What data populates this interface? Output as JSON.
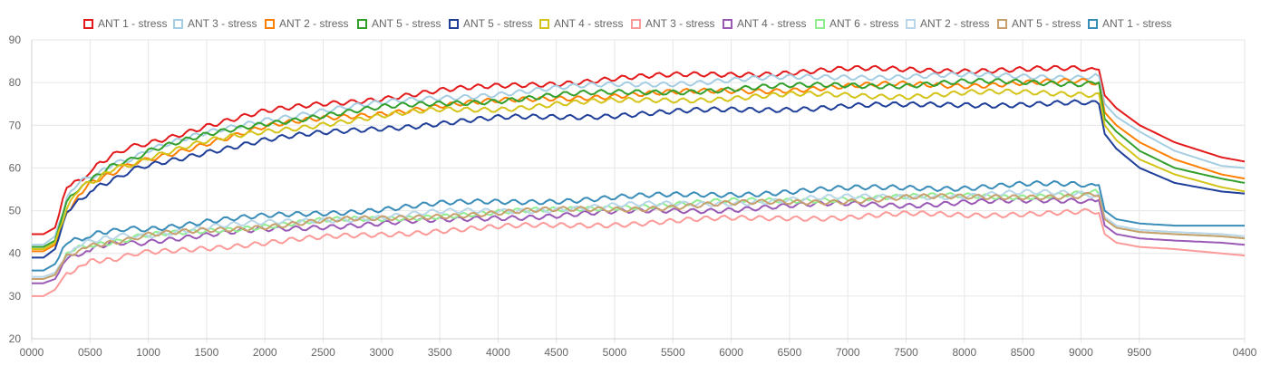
{
  "chart_data": {
    "type": "line",
    "title": "",
    "xlabel": "",
    "ylabel": "",
    "ylim": [
      20,
      90
    ],
    "y_ticks": [
      20,
      30,
      40,
      50,
      60,
      70,
      80,
      90
    ],
    "x_tick_labels": [
      "0000",
      "0500",
      "1000",
      "1500",
      "2000",
      "2500",
      "3000",
      "3500",
      "4000",
      "4500",
      "5000",
      "5500",
      "6000",
      "6500",
      "7000",
      "7500",
      "8000",
      "8500",
      "9000",
      "9500",
      "0400"
    ],
    "grid": true,
    "legend_position": "top",
    "x": [
      0,
      100,
      200,
      300,
      400,
      500,
      700,
      1000,
      1500,
      2000,
      2500,
      3000,
      3500,
      4000,
      4500,
      5000,
      5500,
      6000,
      6500,
      7000,
      7500,
      8000,
      8500,
      9000,
      9150,
      9200,
      9300,
      9500,
      9800,
      10200,
      10400
    ],
    "series": [
      {
        "name": "ANT 1 - stress",
        "color": "#e31a1c",
        "values": [
          44.5,
          44.5,
          46,
          55,
          57,
          59,
          63,
          66,
          70,
          73,
          75,
          76.5,
          78,
          79,
          80,
          81,
          81.5,
          82,
          82.5,
          83,
          83,
          83,
          83,
          83,
          83,
          77,
          74,
          70,
          66,
          62.5,
          61.5
        ]
      },
      {
        "name": "ANT 3 - stress",
        "color": "#a6cee3",
        "values": [
          42,
          42,
          44,
          53,
          56,
          58,
          61,
          64,
          68,
          71.5,
          73.5,
          75,
          76.5,
          77.5,
          78.5,
          79.5,
          80,
          80.5,
          81,
          81.5,
          81.5,
          81.5,
          81.5,
          81.5,
          81.5,
          75,
          72,
          68.5,
          64,
          60.5,
          60
        ]
      },
      {
        "name": "ANT 2 - stress",
        "color": "#ff7f00",
        "values": [
          40.5,
          40.5,
          42,
          50,
          53.5,
          56,
          59,
          62,
          66,
          69.5,
          71.5,
          73,
          74.5,
          75.5,
          76.5,
          77,
          77.5,
          78,
          78.5,
          79,
          79.5,
          79.5,
          80,
          80,
          80,
          73,
          70,
          66,
          62,
          58.5,
          57.5
        ]
      },
      {
        "name": "ANT 5 - stress",
        "color": "#33a02c",
        "values": [
          41.5,
          41.5,
          43,
          52,
          55.5,
          57.5,
          60.5,
          64,
          67.5,
          70.5,
          72.5,
          74,
          75,
          76,
          77,
          77.5,
          78,
          78.5,
          79,
          79.5,
          79.5,
          80,
          80,
          80,
          80,
          71.5,
          68.5,
          64,
          60,
          57.5,
          56.5
        ]
      },
      {
        "name": "ANT 5 - stress",
        "color": "#1f3f99",
        "values": [
          39,
          39,
          41,
          49,
          52,
          54.5,
          57.5,
          60.5,
          64,
          66.5,
          68,
          69.5,
          70.5,
          71.5,
          72,
          72.5,
          73,
          73.5,
          74,
          74.5,
          74.5,
          75,
          75,
          75,
          75,
          68,
          64.5,
          60,
          56.5,
          54.5,
          54
        ]
      },
      {
        "name": "ANT 4 - stress",
        "color": "#d4c419",
        "values": [
          41,
          41,
          42.5,
          51,
          54.5,
          56.5,
          59.5,
          62.5,
          66,
          68.5,
          70.5,
          72,
          73.5,
          74,
          75,
          75.5,
          76,
          76.5,
          77,
          77,
          77,
          77.5,
          77.5,
          77.5,
          77.5,
          70,
          66.5,
          62,
          58.5,
          55.5,
          54.5
        ]
      },
      {
        "name": "ANT 3 - stress",
        "color": "#fb9a99",
        "values": [
          30,
          30,
          31.5,
          35.5,
          37,
          38,
          39,
          40,
          41.5,
          42.5,
          43.5,
          44.5,
          45.5,
          46,
          46.5,
          47,
          47.5,
          48,
          48.5,
          48.5,
          49,
          49,
          49.5,
          49.5,
          49.5,
          44.5,
          42.5,
          41.5,
          41,
          40,
          39.5
        ]
      },
      {
        "name": "ANT 4 - stress",
        "color": "#9b59b6",
        "values": [
          33,
          33,
          34,
          38.5,
          40,
          41,
          42,
          43,
          44,
          45.5,
          46.5,
          47,
          47.5,
          48.5,
          49,
          49.5,
          50,
          50.5,
          51,
          51.5,
          51.5,
          52,
          52,
          52.5,
          52.5,
          46.5,
          44.5,
          43.5,
          43,
          42.5,
          42
        ]
      },
      {
        "name": "ANT 6 - stress",
        "color": "#90ee90",
        "values": [
          34,
          34,
          35,
          39.5,
          41,
          42,
          43,
          44,
          45.5,
          46.5,
          47.5,
          48,
          49,
          49.5,
          50,
          51,
          51.5,
          52,
          52.5,
          53,
          53,
          53.5,
          53.5,
          54,
          54,
          48,
          46,
          45,
          44.5,
          44,
          43.5
        ]
      },
      {
        "name": "ANT 2 - stress",
        "color": "#b9d7e8",
        "values": [
          34.5,
          34.5,
          35.5,
          40,
          41.5,
          42.5,
          43.5,
          44.5,
          46,
          47,
          48,
          48.5,
          49.5,
          50,
          50.5,
          51,
          51.5,
          52,
          52.5,
          53,
          53.5,
          53.5,
          54,
          54,
          54,
          48.5,
          46.5,
          45.5,
          45,
          44.5,
          44
        ]
      },
      {
        "name": "ANT 5 - stress",
        "color": "#c8a06e",
        "values": [
          34,
          34,
          35,
          39.5,
          41,
          42,
          43,
          44,
          45.5,
          46.5,
          47.5,
          48,
          49,
          49.5,
          50,
          50.5,
          51,
          51.5,
          52,
          52.5,
          53,
          53,
          53.5,
          53.5,
          53.5,
          48,
          46,
          45,
          44.5,
          44,
          43.5
        ]
      },
      {
        "name": "ANT 1 - stress",
        "color": "#3a8db8",
        "values": [
          36,
          36,
          37.5,
          42,
          43.5,
          44,
          45,
          46,
          47.5,
          48.5,
          49.5,
          50.5,
          51.5,
          52,
          52.5,
          53,
          53.5,
          54,
          54.5,
          55,
          55.5,
          55.5,
          56,
          56,
          56,
          50,
          48,
          47,
          46.5,
          46.5,
          46.5
        ]
      }
    ]
  }
}
